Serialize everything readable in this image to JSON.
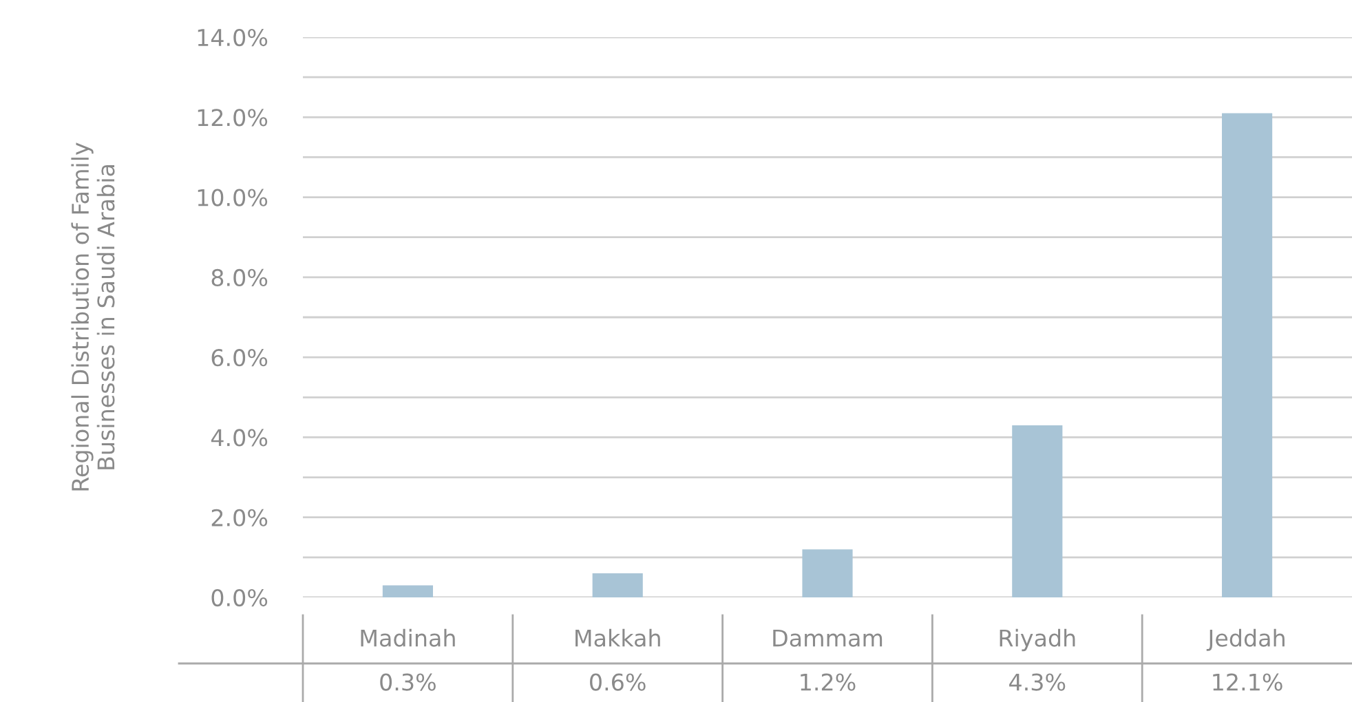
{
  "chart_data": {
    "type": "bar",
    "ylabel": "Regional Distribution of Family\nBusinesses in Saudi Arabia",
    "categories": [
      "Madinah",
      "Makkah",
      "Dammam",
      "Riyadh",
      "Jeddah"
    ],
    "values": [
      0.3,
      0.6,
      1.2,
      4.3,
      12.1
    ],
    "value_labels": [
      "0.3%",
      "0.6%",
      "1.2%",
      "4.3%",
      "12.1%"
    ],
    "color": "#a8c4d6",
    "ylim": [
      0,
      14
    ],
    "yticks": [
      {
        "value": 0,
        "label": "0.0%"
      },
      {
        "value": 1,
        "label": null
      },
      {
        "value": 2,
        "label": "2.0%"
      },
      {
        "value": 3,
        "label": null
      },
      {
        "value": 4,
        "label": "4.0%"
      },
      {
        "value": 5,
        "label": null
      },
      {
        "value": 6,
        "label": "6.0%"
      },
      {
        "value": 7,
        "label": null
      },
      {
        "value": 8,
        "label": "8.0%"
      },
      {
        "value": 9,
        "label": null
      },
      {
        "value": 10,
        "label": "10.0%"
      },
      {
        "value": 11,
        "label": null
      },
      {
        "value": 12,
        "label": "12.0%"
      },
      {
        "value": 13,
        "label": null
      },
      {
        "value": 14,
        "label": "14.0%"
      }
    ],
    "grid": "y"
  }
}
